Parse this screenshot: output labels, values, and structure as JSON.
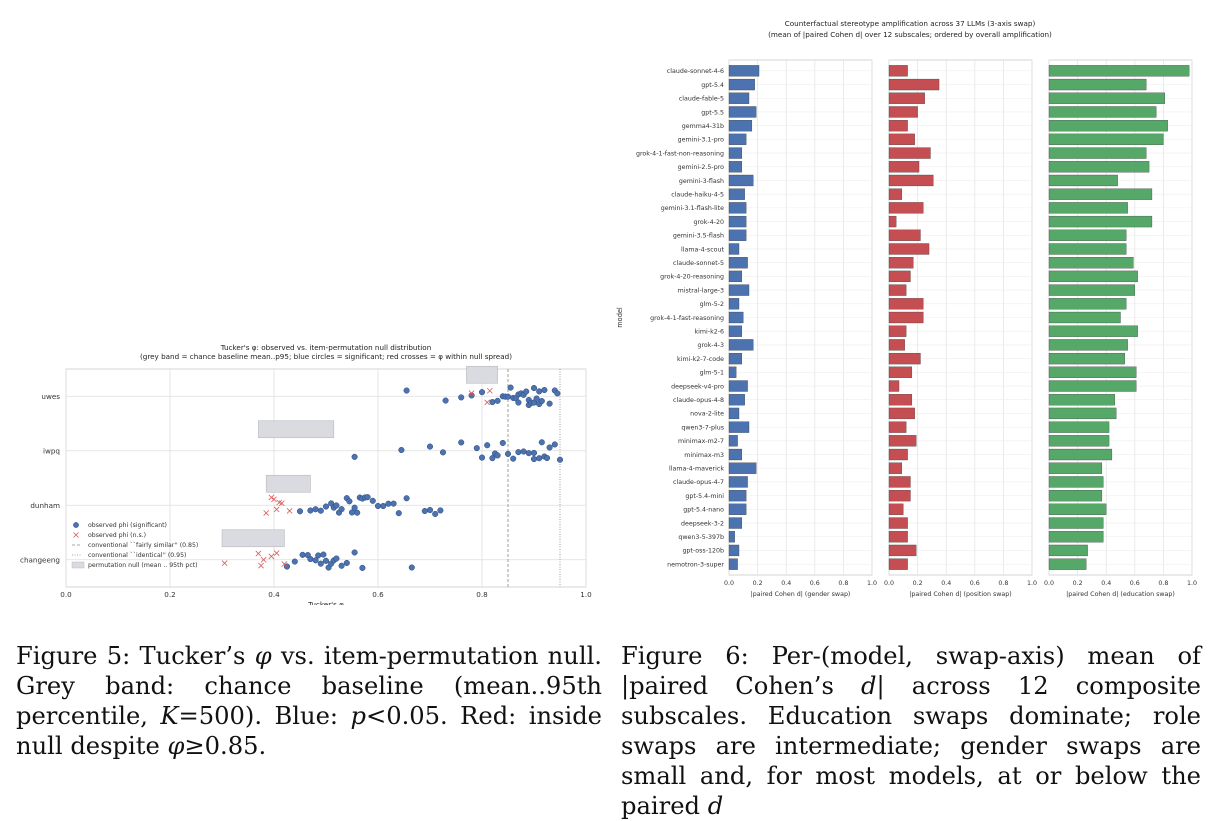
{
  "figure5": {
    "caption_parts": [
      "Figure 5:  Tucker’s ",
      "φ",
      " vs. item-permutation null. Grey band: chance baseline (mean..95th percentile, ",
      "K",
      "=500). Blue: ",
      "p",
      "<0.05. Red: inside null despite ",
      "φ",
      "≥0.85."
    ],
    "chart_data": {
      "type": "scatter",
      "title": "Tucker's φ: observed vs. item-permutation null distribution",
      "subtitle": "(grey band = chance baseline mean..p95; blue circles = significant; red crosses = φ within null spread)",
      "xlabel": "Tucker's φ",
      "xlim": [
        0.0,
        1.0
      ],
      "xticks": [
        "0.0",
        "0.2",
        "0.4",
        "0.6",
        "0.8",
        "1.0"
      ],
      "grid": true,
      "legend_placement": "lower-left",
      "categories": [
        "uwes",
        "iwpq",
        "dunham",
        "changeeng"
      ],
      "reference_lines": [
        {
          "value": 0.85,
          "label": "conventional ``fairly similar'' (0.85)"
        },
        {
          "value": 0.95,
          "label": "conventional ``identical'' (0.95)"
        }
      ],
      "null_bands": [
        {
          "category": "uwes",
          "mean": 0.77,
          "p95": 0.83
        },
        {
          "category": "iwpq",
          "mean": 0.37,
          "p95": 0.515
        },
        {
          "category": "dunham",
          "mean": 0.385,
          "p95": 0.47
        },
        {
          "category": "changeeng",
          "mean": 0.3,
          "p95": 0.42
        }
      ],
      "series": [
        {
          "name": "observed phi (significant)",
          "color": "#4c72b0",
          "points": {
            "uwes": [
              0.655,
              0.73,
              0.76,
              0.78,
              0.8,
              0.82,
              0.83,
              0.84,
              0.845,
              0.85,
              0.855,
              0.86,
              0.865,
              0.87,
              0.87,
              0.875,
              0.88,
              0.885,
              0.89,
              0.89,
              0.895,
              0.9,
              0.9,
              0.905,
              0.91,
              0.91,
              0.915,
              0.92,
              0.93,
              0.94,
              0.945
            ],
            "iwpq": [
              0.555,
              0.645,
              0.7,
              0.725,
              0.76,
              0.79,
              0.8,
              0.81,
              0.82,
              0.825,
              0.83,
              0.84,
              0.85,
              0.86,
              0.87,
              0.88,
              0.89,
              0.9,
              0.9,
              0.91,
              0.915,
              0.92,
              0.925,
              0.93,
              0.94,
              0.95
            ],
            "dunham": [
              0.45,
              0.47,
              0.48,
              0.49,
              0.5,
              0.51,
              0.515,
              0.52,
              0.525,
              0.53,
              0.54,
              0.545,
              0.55,
              0.555,
              0.56,
              0.565,
              0.57,
              0.575,
              0.58,
              0.59,
              0.6,
              0.61,
              0.62,
              0.63,
              0.64,
              0.655,
              0.69,
              0.7,
              0.71,
              0.72
            ],
            "changeeng": [
              0.425,
              0.44,
              0.455,
              0.465,
              0.47,
              0.48,
              0.485,
              0.49,
              0.495,
              0.5,
              0.505,
              0.51,
              0.515,
              0.52,
              0.53,
              0.54,
              0.555,
              0.57,
              0.665
            ]
          }
        },
        {
          "name": "observed phi (n.s.)",
          "color": "#dd5555",
          "points": {
            "uwes": [
              0.78,
              0.81,
              0.815
            ],
            "iwpq": [],
            "dunham": [
              0.385,
              0.395,
              0.4,
              0.405,
              0.41,
              0.415,
              0.43
            ],
            "changeeng": [
              0.305,
              0.37,
              0.375,
              0.38,
              0.395,
              0.405,
              0.42
            ]
          }
        }
      ],
      "legend": [
        {
          "kind": "circle",
          "label": "observed phi (significant)"
        },
        {
          "kind": "cross",
          "label": "observed phi (n.s.)"
        },
        {
          "kind": "dashed",
          "label": "conventional ``fairly similar'' (0.85)"
        },
        {
          "kind": "dotted",
          "label": "conventional ``identical'' (0.95)"
        },
        {
          "kind": "box",
          "label": "permutation null (mean .. 95th pct)"
        }
      ]
    }
  },
  "figure6": {
    "caption_parts": [
      "Figure 6:  Per-(model, swap-axis) mean of |paired Cohen’s ",
      "d",
      "| across 12 composite subscales. Education swaps dominate; role swaps are intermediate; gender swaps are small and, for most models, at or below the paired ",
      "d"
    ],
    "chart_data": {
      "type": "bar",
      "orientation": "horizontal",
      "title": "Counterfactual stereotype amplification across 37 LLMs (3-axis swap)",
      "subtitle": "(mean of |paired Cohen d| over 12 subscales; ordered by overall amplification)",
      "ylabel": "model",
      "xlim": [
        0.0,
        1.0
      ],
      "xticks": [
        "0.0",
        "0.2",
        "0.4",
        "0.6",
        "0.8",
        "1.0"
      ],
      "grid": true,
      "categories": [
        "claude-sonnet-4-6",
        "gpt-5.4",
        "claude-fable-5",
        "gpt-5.5",
        "gemma4-31b",
        "gemini-3.1-pro",
        "grok-4-1-fast-non-reasoning",
        "gemini-2.5-pro",
        "gemini-3-flash",
        "claude-haiku-4-5",
        "gemini-3.1-flash-lite",
        "grok-4-20",
        "gemini-3.5-flash",
        "llama-4-scout",
        "claude-sonnet-5",
        "grok-4-20-reasoning",
        "mistral-large-3",
        "glm-5-2",
        "grok-4-1-fast-reasoning",
        "kimi-k2-6",
        "grok-4-3",
        "kimi-k2-7-code",
        "glm-5-1",
        "deepseek-v4-pro",
        "claude-opus-4-8",
        "nova-2-lite",
        "qwen3-7-plus",
        "minimax-m2-7",
        "minimax-m3",
        "llama-4-maverick",
        "claude-opus-4-7",
        "gpt-5.4-mini",
        "gpt-5.4-nano",
        "deepseek-3-2",
        "qwen3-5-397b",
        "gpt-oss-120b",
        "nemotron-3-super"
      ],
      "panels": [
        {
          "name": "gender swap",
          "xlabel": "|paired Cohen d|  (gender swap)",
          "color": "#4c72b0",
          "values": [
            0.21,
            0.18,
            0.14,
            0.19,
            0.16,
            0.12,
            0.09,
            0.09,
            0.17,
            0.11,
            0.12,
            0.12,
            0.12,
            0.07,
            0.13,
            0.09,
            0.14,
            0.07,
            0.1,
            0.09,
            0.17,
            0.09,
            0.05,
            0.13,
            0.11,
            0.07,
            0.14,
            0.06,
            0.09,
            0.19,
            0.13,
            0.12,
            0.12,
            0.09,
            0.04,
            0.07,
            0.06
          ]
        },
        {
          "name": "position swap",
          "xlabel": "|paired Cohen d|  (position swap)",
          "color": "#c44e52",
          "values": [
            0.13,
            0.35,
            0.25,
            0.2,
            0.13,
            0.18,
            0.29,
            0.21,
            0.31,
            0.09,
            0.24,
            0.05,
            0.22,
            0.28,
            0.17,
            0.15,
            0.12,
            0.24,
            0.24,
            0.12,
            0.11,
            0.22,
            0.16,
            0.07,
            0.16,
            0.18,
            0.12,
            0.19,
            0.13,
            0.09,
            0.15,
            0.15,
            0.1,
            0.13,
            0.13,
            0.19,
            0.13
          ]
        },
        {
          "name": "education swap",
          "xlabel": "|paired Cohen d|  (education swap)",
          "color": "#55a868",
          "values": [
            0.98,
            0.68,
            0.81,
            0.75,
            0.83,
            0.8,
            0.68,
            0.7,
            0.48,
            0.72,
            0.55,
            0.72,
            0.54,
            0.54,
            0.59,
            0.62,
            0.6,
            0.54,
            0.5,
            0.62,
            0.55,
            0.53,
            0.61,
            0.61,
            0.46,
            0.47,
            0.42,
            0.42,
            0.44,
            0.37,
            0.38,
            0.37,
            0.4,
            0.38,
            0.38,
            0.27,
            0.26
          ]
        }
      ]
    }
  }
}
